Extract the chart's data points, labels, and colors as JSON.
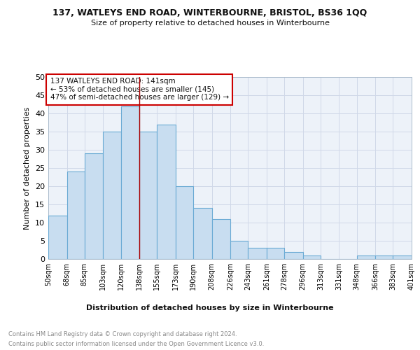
{
  "title1": "137, WATLEYS END ROAD, WINTERBOURNE, BRISTOL, BS36 1QQ",
  "title2": "Size of property relative to detached houses in Winterbourne",
  "xlabel": "Distribution of detached houses by size in Winterbourne",
  "ylabel": "Number of detached properties",
  "footnote1": "Contains HM Land Registry data © Crown copyright and database right 2024.",
  "footnote2": "Contains public sector information licensed under the Open Government Licence v3.0.",
  "annotation_line1": "137 WATLEYS END ROAD: 141sqm",
  "annotation_line2": "← 53% of detached houses are smaller (145)",
  "annotation_line3": "47% of semi-detached houses are larger (129) →",
  "bar_left_edges": [
    50,
    68,
    85,
    103,
    120,
    138,
    155,
    173,
    190,
    208,
    226,
    243,
    261,
    278,
    296,
    313,
    348,
    366,
    383
  ],
  "bar_heights": [
    12,
    24,
    29,
    35,
    42,
    35,
    37,
    20,
    14,
    11,
    5,
    3,
    3,
    2,
    1,
    0,
    1,
    1,
    1
  ],
  "bar_widths": [
    18,
    17,
    18,
    17,
    18,
    17,
    18,
    17,
    18,
    18,
    17,
    18,
    17,
    18,
    17,
    35,
    18,
    17,
    18
  ],
  "bar_color": "#c8ddf0",
  "bar_edge_color": "#6aaad4",
  "vline_x": 138,
  "vline_color": "#aa0000",
  "annotation_box_color": "#cc0000",
  "annotation_text_color": "#111111",
  "grid_color": "#d0d8e8",
  "background_color": "#ffffff",
  "plot_bg_color": "#edf2f9",
  "ylim": [
    0,
    50
  ],
  "yticks": [
    0,
    5,
    10,
    15,
    20,
    25,
    30,
    35,
    40,
    45,
    50
  ],
  "xlim": [
    50,
    401
  ],
  "xtick_labels": [
    "50sqm",
    "68sqm",
    "85sqm",
    "103sqm",
    "120sqm",
    "138sqm",
    "155sqm",
    "173sqm",
    "190sqm",
    "208sqm",
    "226sqm",
    "243sqm",
    "261sqm",
    "278sqm",
    "296sqm",
    "313sqm",
    "331sqm",
    "348sqm",
    "366sqm",
    "383sqm",
    "401sqm"
  ],
  "xtick_positions": [
    50,
    68,
    85,
    103,
    120,
    138,
    155,
    173,
    190,
    208,
    226,
    243,
    261,
    278,
    296,
    313,
    331,
    348,
    366,
    383,
    401
  ]
}
